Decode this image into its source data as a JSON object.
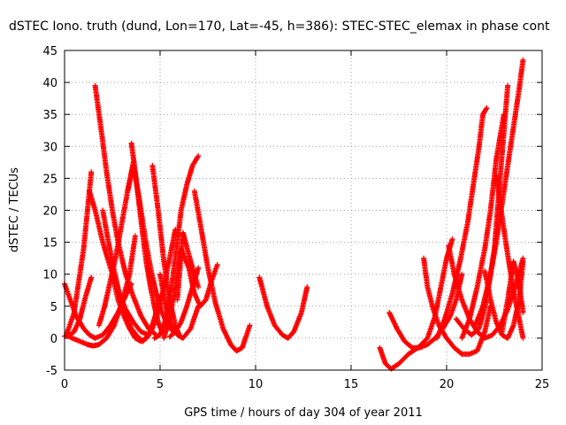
{
  "chart_data": {
    "type": "scatter",
    "title": "dSTEC Iono. truth (dund, Lon=170, Lat=-45, h=386): STEC-STEC_elemax in phase cont",
    "xlabel": "GPS time / hours of day 304 of year 2011",
    "ylabel": "dSTEC  / TECUs",
    "xlim": [
      0,
      25
    ],
    "ylim": [
      -5,
      45
    ],
    "xticks": [
      0,
      5,
      10,
      15,
      20,
      25
    ],
    "yticks": [
      -5,
      0,
      5,
      10,
      15,
      20,
      25,
      30,
      35,
      40,
      45
    ],
    "grid": true,
    "marker": "+",
    "color": "#ff0000",
    "arcs": [
      {
        "t": [
          0.0,
          0.3,
          0.6,
          1.0,
          1.3,
          1.6,
          2.0,
          2.4,
          2.8,
          3.1,
          3.5
        ],
        "v": [
          8.5,
          6.0,
          3.5,
          1.5,
          0.5,
          0.0,
          0.5,
          2.0,
          4.0,
          6.0,
          8.5
        ]
      },
      {
        "t": [
          0.0,
          0.2,
          0.5,
          0.8,
          1.1,
          1.4
        ],
        "v": [
          0.3,
          0.3,
          1.0,
          3.0,
          6.5,
          9.5
        ]
      },
      {
        "t": [
          0.1,
          0.5,
          1.0,
          1.4
        ],
        "v": [
          0.5,
          4.0,
          14.0,
          26.0
        ]
      },
      {
        "t": [
          0.1,
          0.4,
          0.8,
          1.2,
          1.5,
          1.8,
          2.2,
          2.6,
          3.0,
          3.4,
          3.7
        ],
        "v": [
          0.5,
          0.0,
          -0.5,
          -1.0,
          -1.2,
          -1.0,
          0.0,
          2.0,
          5.5,
          10.0,
          16.0
        ]
      },
      {
        "t": [
          1.3,
          1.6,
          2.0,
          2.4,
          2.8,
          3.2,
          3.6,
          4.0,
          4.4
        ],
        "v": [
          23.0,
          20.0,
          15.0,
          11.0,
          7.5,
          4.5,
          2.5,
          1.0,
          0.5
        ]
      },
      {
        "t": [
          1.6,
          1.9,
          2.2,
          2.5,
          2.8,
          3.2,
          3.6,
          4.0,
          4.4,
          4.8
        ],
        "v": [
          39.5,
          33.0,
          26.0,
          20.0,
          15.0,
          10.0,
          6.5,
          3.5,
          1.5,
          0.5
        ]
      },
      {
        "t": [
          1.8,
          2.1,
          2.4,
          2.7,
          3.0,
          3.3,
          3.6
        ],
        "v": [
          2.0,
          5.0,
          9.0,
          13.0,
          18.0,
          23.0,
          27.5
        ]
      },
      {
        "t": [
          2.0,
          2.3,
          2.6,
          2.9,
          3.2,
          3.5,
          3.8,
          4.1,
          4.4,
          4.7,
          5.0
        ],
        "v": [
          20.0,
          15.0,
          10.5,
          6.5,
          3.5,
          1.5,
          0.3,
          -0.5,
          0.5,
          3.0,
          6.5
        ]
      },
      {
        "t": [
          2.5,
          2.8,
          3.1,
          3.4,
          3.7,
          4.0,
          4.3,
          4.6,
          4.9,
          5.2,
          5.5,
          5.8
        ],
        "v": [
          10.0,
          6.0,
          3.5,
          1.5,
          0.0,
          -0.5,
          0.0,
          1.5,
          4.0,
          8.0,
          12.5,
          17.0
        ]
      },
      {
        "t": [
          3.5,
          3.7,
          3.9,
          4.1,
          4.3,
          4.5,
          4.7,
          4.9,
          5.1
        ],
        "v": [
          30.5,
          26.0,
          21.0,
          16.0,
          11.5,
          8.0,
          5.0,
          2.5,
          1.0
        ]
      },
      {
        "t": [
          3.3,
          3.6,
          3.9,
          4.2,
          4.5,
          4.8,
          5.1,
          5.4,
          5.7,
          6.0
        ],
        "v": [
          23.0,
          27.0,
          22.0,
          16.0,
          11.0,
          7.0,
          4.0,
          2.0,
          1.0,
          0.5
        ]
      },
      {
        "t": [
          4.6,
          4.9,
          5.2,
          5.5,
          5.8,
          6.0
        ],
        "v": [
          27.0,
          20.0,
          12.0,
          6.0,
          2.0,
          0.5
        ]
      },
      {
        "t": [
          4.7,
          5.0,
          5.3,
          5.6,
          5.9,
          6.1,
          6.4,
          6.7,
          7.0
        ],
        "v": [
          0.0,
          0.5,
          3.0,
          8.0,
          15.0,
          20.0,
          24.0,
          27.0,
          28.5
        ]
      },
      {
        "t": [
          5.0,
          5.3,
          5.6,
          5.9,
          6.2,
          6.6,
          7.0
        ],
        "v": [
          10.0,
          5.0,
          2.0,
          0.5,
          0.0,
          1.5,
          5.0
        ]
      },
      {
        "t": [
          5.2,
          5.5,
          5.8,
          6.1,
          6.5,
          6.8,
          7.1,
          7.4,
          7.7,
          8.0
        ],
        "v": [
          0.0,
          3.0,
          8.0,
          14.0,
          11.0,
          7.0,
          5.0,
          6.0,
          9.0,
          11.5
        ]
      },
      {
        "t": [
          5.5,
          5.8,
          6.1,
          6.4,
          6.7,
          7.0
        ],
        "v": [
          0.2,
          1.0,
          2.5,
          5.0,
          8.0,
          11.0
        ]
      },
      {
        "t": [
          5.9,
          6.2,
          6.6,
          7.0
        ],
        "v": [
          6.0,
          16.5,
          12.0,
          8.0
        ]
      },
      {
        "t": [
          6.8,
          7.1,
          7.5,
          7.9,
          8.3,
          8.7,
          9.0,
          9.3,
          9.7
        ],
        "v": [
          23.0,
          18.0,
          11.0,
          5.5,
          1.5,
          -1.0,
          -2.0,
          -1.5,
          2.0
        ]
      },
      {
        "t": [
          10.2,
          10.6,
          11.0,
          11.4,
          11.7,
          12.0,
          12.4,
          12.7
        ],
        "v": [
          9.5,
          5.0,
          2.0,
          0.5,
          0.0,
          1.0,
          4.0,
          8.0
        ]
      },
      {
        "t": [
          16.5,
          16.8,
          17.1,
          17.5,
          18.0,
          18.5,
          19.0,
          19.4,
          19.7,
          20.0,
          20.3
        ],
        "v": [
          -1.5,
          -4.0,
          -4.8,
          -4.0,
          -2.5,
          -1.5,
          0.0,
          3.5,
          8.0,
          12.5,
          15.5
        ]
      },
      {
        "t": [
          17.0,
          17.4,
          17.8,
          18.2,
          18.6,
          19.0,
          19.4,
          19.8,
          20.2,
          20.5,
          20.8
        ],
        "v": [
          4.0,
          1.5,
          -0.5,
          -1.5,
          -1.5,
          -1.0,
          0.0,
          1.5,
          3.5,
          6.0,
          10.0
        ]
      },
      {
        "t": [
          18.8,
          19.0,
          19.3,
          19.6,
          20.0,
          20.4,
          20.8,
          21.2,
          21.6,
          22.0,
          22.3
        ],
        "v": [
          12.5,
          8.0,
          4.5,
          2.0,
          0.0,
          -1.5,
          -2.5,
          -2.5,
          -2.0,
          1.0,
          5.0
        ]
      },
      {
        "t": [
          19.5,
          19.9,
          20.3,
          20.7,
          21.1,
          21.4,
          21.7,
          21.9,
          22.1
        ],
        "v": [
          0.0,
          3.0,
          7.0,
          12.0,
          18.0,
          24.0,
          30.0,
          35.0,
          36.0
        ]
      },
      {
        "t": [
          20.1,
          20.4,
          20.8,
          21.2,
          21.6,
          22.0,
          22.4,
          22.8,
          23.2,
          23.6,
          24.0
        ],
        "v": [
          14.5,
          10.0,
          6.0,
          3.0,
          1.0,
          0.0,
          0.5,
          2.0,
          4.5,
          8.0,
          12.5
        ]
      },
      {
        "t": [
          20.5,
          20.9,
          21.3,
          21.7,
          22.1,
          22.5,
          22.8,
          23.2
        ],
        "v": [
          3.0,
          1.5,
          0.5,
          1.5,
          6.0,
          14.0,
          25.0,
          39.5
        ]
      },
      {
        "t": [
          20.8,
          21.2,
          21.6,
          22.0,
          22.3,
          22.6,
          23.0
        ],
        "v": [
          0.0,
          3.0,
          8.0,
          14.0,
          20.0,
          28.0,
          35.0
        ]
      },
      {
        "t": [
          21.5,
          21.9,
          22.3,
          22.6,
          22.9,
          23.2,
          23.5,
          23.8,
          24.0
        ],
        "v": [
          2.0,
          5.0,
          10.0,
          15.0,
          21.0,
          27.0,
          33.0,
          39.0,
          43.5
        ]
      },
      {
        "t": [
          22.0,
          22.3,
          22.6,
          22.9,
          23.2,
          23.5,
          23.8,
          24.0
        ],
        "v": [
          10.5,
          6.0,
          2.5,
          0.5,
          0.0,
          2.0,
          6.0,
          12.0
        ]
      },
      {
        "t": [
          22.6,
          22.9,
          23.2,
          23.5,
          23.8,
          24.0
        ],
        "v": [
          25.5,
          19.0,
          13.0,
          7.5,
          3.0,
          0.0
        ]
      },
      {
        "t": [
          22.9,
          23.2,
          23.5,
          23.8,
          24.0
        ],
        "v": [
          1.0,
          6.0,
          12.0,
          8.5,
          4.0
        ]
      }
    ]
  }
}
